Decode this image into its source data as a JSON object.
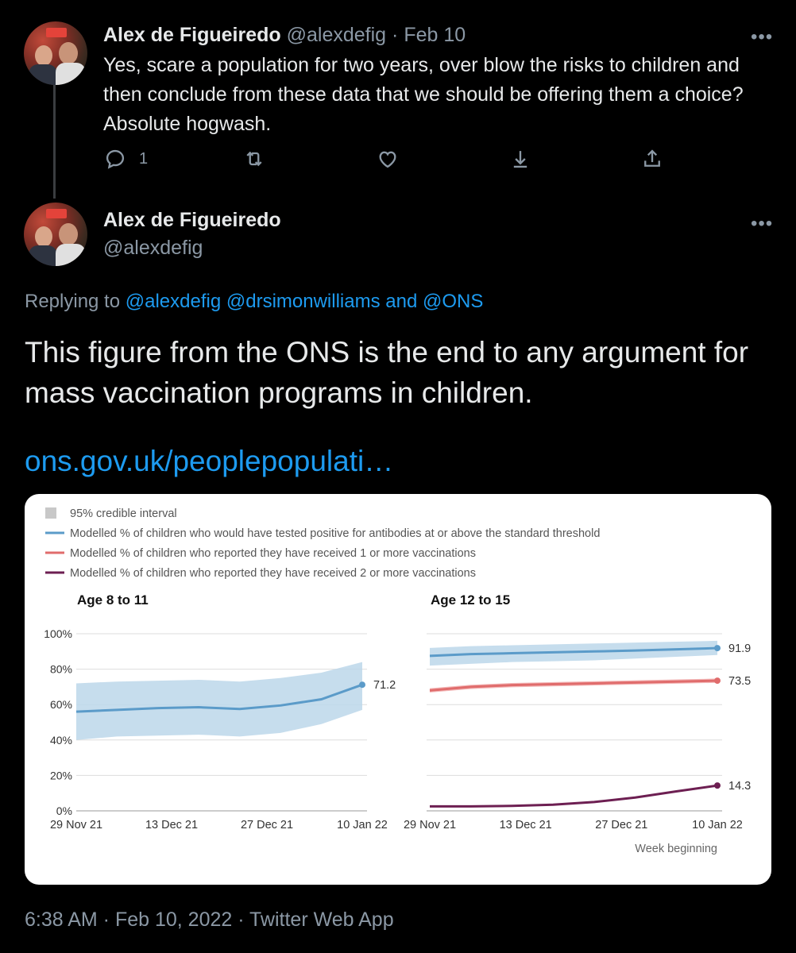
{
  "tweet1": {
    "author_name": "Alex de Figueiredo",
    "handle": "@alexdefig",
    "separator": "·",
    "date": "Feb 10",
    "text": "Yes, scare a population for two years, over blow the risks to children and then conclude from these data that we should be offering them a choice? Absolute hogwash.",
    "more": "•••",
    "reply_count": "1",
    "icons": [
      "reply-icon",
      "retweet-icon",
      "like-icon",
      "bookmark-icon",
      "share-icon"
    ]
  },
  "tweet2": {
    "author_name": "Alex de Figueiredo",
    "handle": "@alexdefig",
    "more": "•••",
    "replying_prefix": "Replying to",
    "mention1": "@alexdefig",
    "mention2": "@drsimonwilliams",
    "and_text": "and",
    "mention3": "@ONS",
    "text": "This figure from the ONS is the end to any argument for mass vaccination programs in children.",
    "link": "ons.gov.uk/peoplepopulati…",
    "footer": "6:38 AM · Feb 10, 2022 · Twitter Web App"
  },
  "colors": {
    "link": "#1d9bf0",
    "muted": "#8b98a5",
    "antibodies": "#5b9bc9",
    "band": "#bcd7ea",
    "one_dose": "#e06c6c",
    "two_dose": "#6d1f52"
  },
  "chart_data": {
    "legend": [
      "95% credible interval",
      "Modelled % of children who would have tested positive for antibodies at or above the standard threshold",
      "Modelled % of children who reported they have received 1 or more vaccinations",
      "Modelled % of children who reported they have received 2 or more vaccinations"
    ],
    "x_title": "Week beginning",
    "y_ticks": [
      "100%",
      "80%",
      "60%",
      "40%",
      "20%",
      "0%"
    ],
    "panels": [
      {
        "type": "line",
        "title": "Age 8 to 11",
        "x_ticks": [
          "29 Nov 21",
          "13 Dec 21",
          "27 Dec 21",
          "10 Jan 22"
        ],
        "ylim": [
          0,
          100
        ],
        "antibodies": [
          56,
          57,
          58,
          58.5,
          57.5,
          59.5,
          63,
          71.2
        ],
        "lower": [
          40,
          42,
          42.5,
          43,
          42,
          44,
          49,
          57
        ],
        "upper": [
          72,
          73,
          73.5,
          74,
          73,
          75,
          78,
          84
        ],
        "end_label": "71.2"
      },
      {
        "type": "line",
        "title": "Age 12 to 15",
        "x_ticks": [
          "29 Nov 21",
          "13 Dec 21",
          "27 Dec 21",
          "10 Jan 22"
        ],
        "ylim": [
          0,
          100
        ],
        "antibodies": [
          87.5,
          88.5,
          89,
          89.5,
          90,
          90.5,
          91.2,
          91.9
        ],
        "lower": [
          82,
          83,
          84,
          84.5,
          85,
          86,
          87,
          88
        ],
        "upper": [
          92,
          93,
          93.5,
          94,
          94.5,
          95,
          95.5,
          96
        ],
        "one_dose": [
          68,
          70,
          71,
          71.5,
          72,
          72.5,
          73,
          73.5
        ],
        "one_dose_band": 1.2,
        "two_dose": [
          2.5,
          2.5,
          2.8,
          3.5,
          5,
          7.5,
          11,
          14.3
        ],
        "end_labels": [
          "91.9",
          "73.5",
          "14.3"
        ]
      }
    ]
  }
}
